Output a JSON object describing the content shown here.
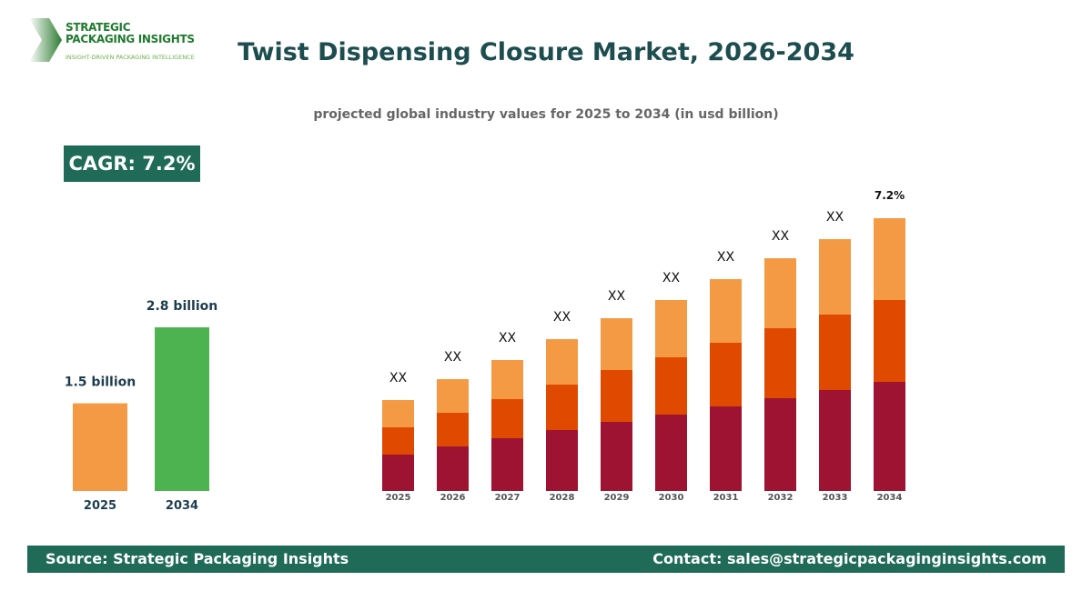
{
  "logo": {
    "line1": "STRATEGIC",
    "line2": "PACKAGING INSIGHTS",
    "tagline": "INSIGHT-DRIVEN PACKAGING INTELLIGENCE"
  },
  "title": "Twist Dispensing Closure Market, 2026-2034",
  "subtitle": "projected global industry values for 2025 to 2034 (in usd billion)",
  "cagr": "CAGR: 7.2%",
  "chart_data": [
    {
      "type": "bar",
      "categories": [
        "2025",
        "2034"
      ],
      "values": [
        1.5,
        2.8
      ],
      "data_labels": [
        "1.5 billion",
        "2.8 billion"
      ],
      "colors": [
        "#f49a45",
        "#4cb350"
      ],
      "ylim": [
        0,
        2.8
      ]
    },
    {
      "type": "bar",
      "stacked": true,
      "categories": [
        "2025",
        "2026",
        "2027",
        "2028",
        "2029",
        "2030",
        "2031",
        "2032",
        "2033",
        "2034"
      ],
      "series": [
        {
          "values": [
            40,
            49,
            58,
            67,
            76,
            84,
            93,
            102,
            111,
            120
          ],
          "color": "#9e1232"
        },
        {
          "values": [
            30,
            37,
            43,
            50,
            57,
            63,
            70,
            77,
            83,
            90
          ],
          "color": "#e04a00"
        },
        {
          "values": [
            30,
            37,
            43,
            50,
            57,
            63,
            70,
            77,
            83,
            90
          ],
          "color": "#f49a45"
        }
      ],
      "data_labels": [
        "XX",
        "XX",
        "XX",
        "XX",
        "XX",
        "XX",
        "XX",
        "XX",
        "XX",
        "7.2%"
      ]
    }
  ],
  "footer": {
    "source": "Source: Strategic Packaging Insights",
    "contact": "Contact: sales@strategicpackaginginsights.com"
  }
}
